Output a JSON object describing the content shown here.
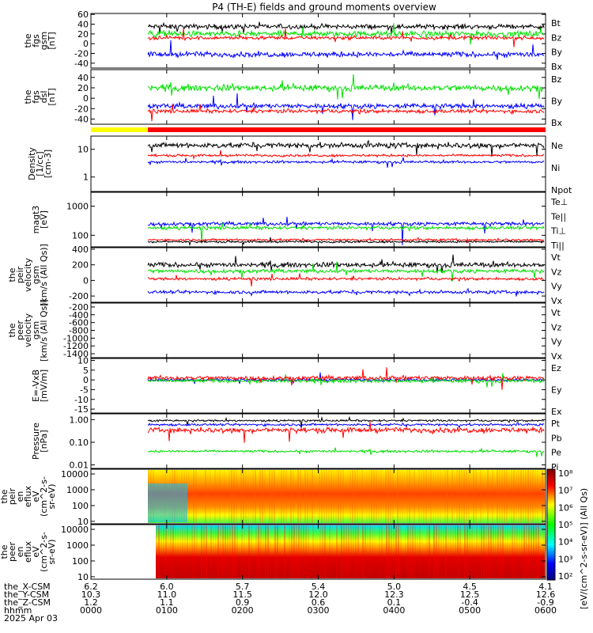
{
  "title": "P4 (TH-E) fields and ground moments overview",
  "colors": {
    "black": "#000000",
    "red": "#ff0000",
    "green": "#00e000",
    "blue": "#0000ff",
    "yellow": "#ffff00",
    "barRed": "#ff0000"
  },
  "panels": [
    {
      "id": "fgs_gsm",
      "ylabel": [
        "the",
        "fgs",
        "gsm",
        "[nT]"
      ],
      "ticks": [
        "60",
        "40",
        "20",
        "0",
        "-20",
        "-40"
      ],
      "tickvals": [
        60,
        40,
        20,
        0,
        -20,
        -40
      ],
      "ylim": [
        -50,
        62
      ],
      "log": false,
      "legend": [
        {
          "text": "Bt",
          "color": "#000000"
        },
        {
          "text": "Bz",
          "color": "#ff0000"
        },
        {
          "text": "By",
          "color": "#00e000"
        },
        {
          "text": "Bx",
          "color": "#0000ff"
        }
      ],
      "series": [
        {
          "color": "#000000",
          "base": 35,
          "amp": 8
        },
        {
          "color": "#00e000",
          "base": 20,
          "amp": 10
        },
        {
          "color": "#ff0000",
          "base": 12,
          "amp": 6
        },
        {
          "color": "#0000ff",
          "base": -22,
          "amp": 9
        }
      ]
    },
    {
      "id": "fgs_dsl",
      "ylabel": [
        "the",
        "fgs",
        "dsl",
        "[nT]"
      ],
      "ticks": [
        "40",
        "20",
        "0",
        "-20",
        "-40"
      ],
      "tickvals": [
        40,
        20,
        0,
        -20,
        -40
      ],
      "ylim": [
        -50,
        55
      ],
      "log": false,
      "legend": [
        {
          "text": "Bz",
          "color": "#ff0000"
        },
        {
          "text": "By",
          "color": "#00e000"
        },
        {
          "text": "Bx",
          "color": "#0000ff"
        }
      ],
      "series": [
        {
          "color": "#00e000",
          "base": 20,
          "amp": 10
        },
        {
          "color": "#0000ff",
          "base": -15,
          "amp": 8
        },
        {
          "color": "#ff0000",
          "base": -25,
          "amp": 6
        }
      ]
    },
    {
      "id": "density",
      "ylabel": [
        "Density",
        "[1/cc]",
        "[cm-3]"
      ],
      "ticks": [
        "10",
        "1"
      ],
      "tickvals": [
        10,
        1
      ],
      "ylim": [
        0.3,
        30
      ],
      "log": true,
      "legend": [
        {
          "text": "Ne",
          "color": "#ff0000"
        },
        {
          "text": "Ni",
          "color": "#000000"
        },
        {
          "text": "Npot",
          "color": "#0000ff"
        }
      ],
      "series": [
        {
          "color": "#000000",
          "base": 14,
          "amp": 5
        },
        {
          "color": "#ff0000",
          "base": 6,
          "amp": 1
        },
        {
          "color": "#0000ff",
          "base": 3.5,
          "amp": 0.6
        }
      ]
    },
    {
      "id": "temp",
      "ylabel": [
        "magt3",
        "[eV]"
      ],
      "ticks": [
        "1000",
        "100"
      ],
      "tickvals": [
        1000,
        100
      ],
      "ylim": [
        40,
        3000
      ],
      "log": true,
      "legend": [
        {
          "text": "Te⊥",
          "color": "#ff0000"
        },
        {
          "text": "Te||",
          "color": "#000000"
        },
        {
          "text": "Ti⊥",
          "color": "#0000ff"
        },
        {
          "text": "Ti||",
          "color": "#00e000"
        }
      ],
      "series": [
        {
          "color": "#0000ff",
          "base": 250,
          "amp": 60
        },
        {
          "color": "#00e000",
          "base": 180,
          "amp": 40
        },
        {
          "color": "#ff0000",
          "base": 70,
          "amp": 10
        },
        {
          "color": "#000000",
          "base": 60,
          "amp": 8
        }
      ]
    },
    {
      "id": "peir_vel",
      "ylabel": [
        "the",
        "peir",
        "velocity",
        "gsm",
        "[km/s (All Qs)]"
      ],
      "ticks": [
        "400",
        "200",
        "0",
        "-200"
      ],
      "tickvals": [
        400,
        200,
        0,
        -200
      ],
      "ylim": [
        -280,
        420
      ],
      "log": false,
      "legend": [
        {
          "text": "Vt",
          "color": "#000000"
        },
        {
          "text": "Vz",
          "color": "#ff0000"
        },
        {
          "text": "Vy",
          "color": "#00e000"
        },
        {
          "text": "Vx",
          "color": "#0000ff"
        }
      ],
      "series": [
        {
          "color": "#000000",
          "base": 200,
          "amp": 50
        },
        {
          "color": "#00e000",
          "base": 120,
          "amp": 40
        },
        {
          "color": "#ff0000",
          "base": 20,
          "amp": 30
        },
        {
          "color": "#0000ff",
          "base": -150,
          "amp": 35
        }
      ]
    },
    {
      "id": "peer_vel",
      "ylabel": [
        "the",
        "peer",
        "velocity",
        "gsm",
        "[km/s (All Qs)]"
      ],
      "ticks": [
        "-200",
        "-400",
        "-600",
        "-800",
        "-1000",
        "-1200",
        "-1400"
      ],
      "tickvals": [
        -200,
        -400,
        -600,
        -800,
        -1000,
        -1200,
        -1400
      ],
      "ylim": [
        -1500,
        -100
      ],
      "log": false,
      "legend": [
        {
          "text": "Vt",
          "color": "#000000"
        },
        {
          "text": "Vz",
          "color": "#ff0000"
        },
        {
          "text": "Vy",
          "color": "#00e000"
        },
        {
          "text": "Vx",
          "color": "#0000ff"
        }
      ],
      "series": []
    },
    {
      "id": "efield",
      "ylabel": [
        "E=-VxB",
        "[mV/m]"
      ],
      "ticks": [
        "10",
        "5",
        "0",
        "-5",
        "-10",
        "-15"
      ],
      "tickvals": [
        10,
        5,
        0,
        -5,
        -10,
        -15
      ],
      "ylim": [
        -17,
        11
      ],
      "log": false,
      "legend": [
        {
          "text": "Ez",
          "color": "#ff0000"
        },
        {
          "text": "Ey",
          "color": "#00e000"
        },
        {
          "text": "Ex",
          "color": "#0000ff"
        }
      ],
      "series": [
        {
          "color": "#0000ff",
          "base": 0,
          "amp": 1.2
        },
        {
          "color": "#00e000",
          "base": -0.5,
          "amp": 1.5
        },
        {
          "color": "#ff0000",
          "base": 1,
          "amp": 1.8
        }
      ]
    },
    {
      "id": "pressure",
      "ylabel": [
        "Pressure",
        "[nPa]"
      ],
      "ticks": [
        "1.00",
        "0.10",
        "0.01"
      ],
      "tickvals": [
        1,
        0.1,
        0.01
      ],
      "ylim": [
        0.007,
        1.8
      ],
      "log": true,
      "legend": [
        {
          "text": "Pt",
          "color": "#000000"
        },
        {
          "text": "Pb",
          "color": "#ff0000"
        },
        {
          "text": "Pe",
          "color": "#00e000"
        },
        {
          "text": "Pi",
          "color": "#0000ff"
        }
      ],
      "series": [
        {
          "color": "#000000",
          "base": 0.9,
          "amp": 0.15
        },
        {
          "color": "#0000ff",
          "base": 0.6,
          "amp": 0.12
        },
        {
          "color": "#ff0000",
          "base": 0.35,
          "amp": 0.15
        },
        {
          "color": "#00e000",
          "base": 0.04,
          "amp": 0.008
        }
      ]
    },
    {
      "id": "peir_spec",
      "ylabel": [
        "the",
        "peir",
        "en",
        "eflux",
        "eV",
        "(cm^2-s-",
        "sr-eV)"
      ],
      "ticks": [
        "10000",
        "1000",
        "100",
        "10"
      ],
      "tickvals": [
        10000,
        1000,
        100,
        10
      ],
      "ylim": [
        7,
        20000
      ],
      "log": true,
      "spectrogram": true,
      "legend": [],
      "series": []
    },
    {
      "id": "peer_spec",
      "ylabel": [
        "the",
        "peer",
        "en",
        "eflux",
        "eV",
        "(cm^2-s-",
        "sr-eV)"
      ],
      "ticks": [
        "10000",
        "1000",
        "100",
        "10"
      ],
      "tickvals": [
        10000,
        1000,
        100,
        10
      ],
      "ylim": [
        7,
        20000
      ],
      "log": true,
      "spectrogram": true,
      "legend": [],
      "series": []
    }
  ],
  "colorbar": {
    "ticks": [
      "10⁸",
      "10⁷",
      "10⁶",
      "10⁵",
      "10⁴",
      "10³",
      "10²"
    ],
    "label": "[eV/(cm^2-s-sr-eV)] (All Qs)"
  },
  "xaxis": {
    "rows": [
      {
        "name": "the_X-CSM",
        "values": [
          "6.2",
          "6.0",
          "5.7",
          "5.4",
          "5.0",
          "4.5",
          "4.1"
        ]
      },
      {
        "name": "the_Y-CSM",
        "values": [
          "10.3",
          "11.0",
          "11.5",
          "12.0",
          "12.3",
          "12.5",
          "12.6"
        ]
      },
      {
        "name": "the_Z-CSM",
        "values": [
          "1.2",
          "1.1",
          "0.9",
          "0.6",
          "0.1",
          "-0.4",
          "-0.9"
        ]
      },
      {
        "name": "hhmm",
        "values": [
          "0000",
          "0100",
          "0200",
          "0300",
          "0400",
          "0500",
          "0600"
        ]
      },
      {
        "name": "2025 Apr 03",
        "values": []
      }
    ]
  }
}
